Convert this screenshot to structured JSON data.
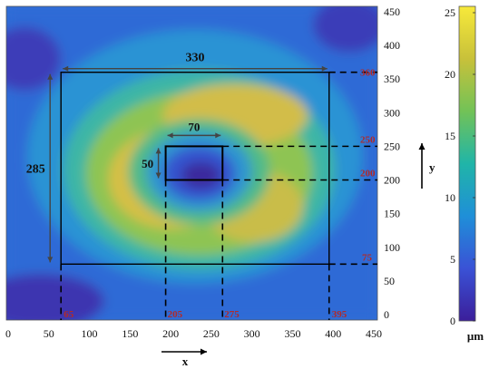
{
  "chart_data": {
    "type": "heatmap",
    "title": "",
    "xlabel": "x",
    "ylabel": "y",
    "xlim": [
      0,
      450
    ],
    "ylim": [
      0,
      450
    ],
    "x_ticks": [
      "0",
      "50",
      "100",
      "150",
      "200",
      "250",
      "300",
      "350",
      "400",
      "450"
    ],
    "y_ticks": [
      "0",
      "50",
      "100",
      "150",
      "200",
      "250",
      "300",
      "350",
      "400",
      "450"
    ],
    "colorbar": {
      "label": "μm",
      "range": [
        0,
        25
      ],
      "ticks": [
        "0",
        "5",
        "10",
        "15",
        "20",
        "25"
      ],
      "colors": [
        "#3b1e9a",
        "#3a52d6",
        "#1f8fd8",
        "#20b5a8",
        "#72c257",
        "#c8c13a",
        "#f7e93a"
      ]
    },
    "outer_box": {
      "x0": 65,
      "x1": 395,
      "y0": 75,
      "y1": 360
    },
    "inner_box": {
      "x0": 205,
      "x1": 275,
      "y0": 200,
      "y1": 250
    },
    "annotations": {
      "width_outer": "330",
      "height_outer": "285",
      "width_inner": "70",
      "height_inner": "50",
      "x_left_outer": "65",
      "x_left_inner": "205",
      "x_right_inner": "275",
      "x_right_outer": "395",
      "y_top_outer": "360",
      "y_top_inner": "250",
      "y_bottom_inner": "200",
      "y_bottom_outer": "75"
    }
  }
}
